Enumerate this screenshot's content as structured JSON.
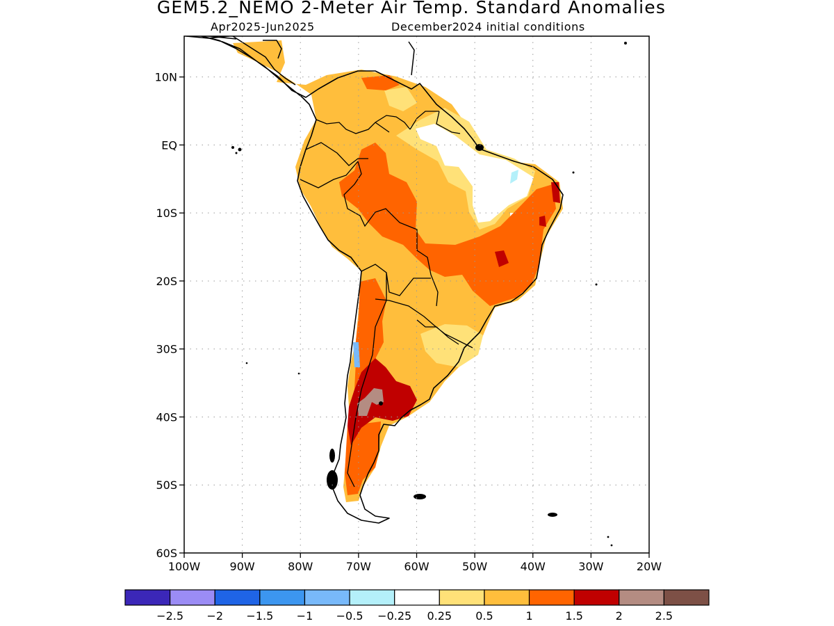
{
  "title": "GEM5.2_NEMO 2-Meter Air Temp. Standard Anomalies",
  "subtitle_left": "Apr2025-Jun2025",
  "subtitle_right": "December2024 initial conditions",
  "map": {
    "region": "South America",
    "lat_range": [
      -60,
      16
    ],
    "lon_range": [
      -100,
      -20
    ],
    "grid": "dotted",
    "lat_ticks": [
      {
        "value": 10,
        "label": "10N"
      },
      {
        "value": 0,
        "label": "EQ"
      },
      {
        "value": -10,
        "label": "10S"
      },
      {
        "value": -20,
        "label": "20S"
      },
      {
        "value": -30,
        "label": "30S"
      },
      {
        "value": -40,
        "label": "40S"
      },
      {
        "value": -50,
        "label": "50S"
      },
      {
        "value": -60,
        "label": "60S"
      }
    ],
    "lon_ticks": [
      {
        "value": -100,
        "label": "100W"
      },
      {
        "value": -90,
        "label": "90W"
      },
      {
        "value": -80,
        "label": "80W"
      },
      {
        "value": -70,
        "label": "70W"
      },
      {
        "value": -60,
        "label": "60W"
      },
      {
        "value": -50,
        "label": "50W"
      },
      {
        "value": -40,
        "label": "40W"
      },
      {
        "value": -30,
        "label": "30W"
      },
      {
        "value": -20,
        "label": "20W"
      }
    ]
  },
  "colorbar": {
    "colors": [
      "#3b27b8",
      "#9b8cf5",
      "#1f64e6",
      "#3c96f0",
      "#78b9fa",
      "#b4f0fa",
      "#ffffff",
      "#ffe178",
      "#ffbe3c",
      "#ff6400",
      "#c00000",
      "#b48c82",
      "#7d5046"
    ],
    "labels": [
      "-2.5",
      "-2",
      "-1.5",
      "-1",
      "-0.5",
      "-0.25",
      "0.25",
      "0.5",
      "1",
      "1.5",
      "2",
      "2.5"
    ]
  },
  "palette": {
    "land_outline": "#000000",
    "grid": "#9a9a9a"
  }
}
